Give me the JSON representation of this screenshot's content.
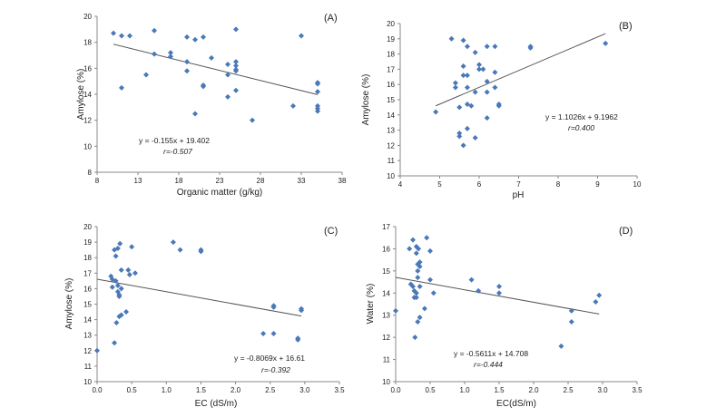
{
  "colors": {
    "marker": "#4a78b8",
    "trend": "#555555",
    "axis": "#888888"
  },
  "chart_data": [
    {
      "type": "scatter",
      "panel_label": "(A)",
      "xlabel": "Organic matter (g/kg)",
      "ylabel": "Amylose (%)",
      "xlim": [
        8,
        38
      ],
      "ylim": [
        8,
        20
      ],
      "xticks": [
        8,
        13,
        18,
        23,
        28,
        33,
        38
      ],
      "yticks": [
        8,
        10,
        12,
        14,
        16,
        18,
        20
      ],
      "equation": "y = -0.155x + 19.402",
      "r_text": "r=-0.507",
      "trend": {
        "slope": -0.155,
        "intercept": 19.402,
        "x_range": [
          10,
          35
        ]
      },
      "points": [
        [
          10,
          18.7
        ],
        [
          11,
          14.5
        ],
        [
          11,
          18.5
        ],
        [
          12,
          18.5
        ],
        [
          14,
          15.5
        ],
        [
          15,
          18.9
        ],
        [
          15,
          17.1
        ],
        [
          17,
          17.2
        ],
        [
          17,
          16.9
        ],
        [
          19,
          18.4
        ],
        [
          19,
          16.5
        ],
        [
          19,
          15.8
        ],
        [
          20,
          18.2
        ],
        [
          20,
          12.5
        ],
        [
          21,
          18.4
        ],
        [
          21,
          14.7
        ],
        [
          21,
          14.6
        ],
        [
          22,
          16.8
        ],
        [
          24,
          16.3
        ],
        [
          24,
          15.5
        ],
        [
          24,
          13.8
        ],
        [
          25,
          19.0
        ],
        [
          25,
          16.5
        ],
        [
          25,
          16.2
        ],
        [
          25,
          15.9
        ],
        [
          25,
          15.8
        ],
        [
          25,
          14.3
        ],
        [
          27,
          12.0
        ],
        [
          32,
          13.1
        ],
        [
          33,
          18.5
        ],
        [
          35,
          14.9
        ],
        [
          35,
          14.8
        ],
        [
          35,
          14.2
        ],
        [
          35,
          13.1
        ],
        [
          35,
          12.9
        ],
        [
          35,
          12.7
        ]
      ]
    },
    {
      "type": "scatter",
      "panel_label": "(B)",
      "xlabel": "pH",
      "ylabel": "Amylose (%)",
      "xlim": [
        4,
        10
      ],
      "ylim": [
        10,
        20
      ],
      "xticks": [
        4,
        5,
        6,
        7,
        8,
        9,
        10
      ],
      "yticks": [
        10,
        11,
        12,
        13,
        14,
        15,
        16,
        17,
        18,
        19,
        20
      ],
      "equation": "y = 1.1026x + 9.1962",
      "r_text": "r=0.400",
      "trend": {
        "slope": 1.1026,
        "intercept": 9.1962,
        "x_range": [
          4.9,
          9.2
        ]
      },
      "points": [
        [
          4.9,
          14.2
        ],
        [
          5.3,
          19.0
        ],
        [
          5.4,
          16.1
        ],
        [
          5.4,
          15.8
        ],
        [
          5.5,
          14.5
        ],
        [
          5.5,
          12.8
        ],
        [
          5.5,
          12.6
        ],
        [
          5.6,
          18.9
        ],
        [
          5.6,
          17.2
        ],
        [
          5.6,
          16.6
        ],
        [
          5.6,
          12.0
        ],
        [
          5.7,
          18.5
        ],
        [
          5.7,
          16.6
        ],
        [
          5.7,
          15.8
        ],
        [
          5.7,
          14.7
        ],
        [
          5.8,
          14.6
        ],
        [
          5.7,
          13.1
        ],
        [
          5.9,
          18.1
        ],
        [
          5.9,
          15.5
        ],
        [
          5.9,
          12.5
        ],
        [
          6.0,
          17.3
        ],
        [
          6.0,
          17.0
        ],
        [
          6.1,
          17.0
        ],
        [
          6.2,
          18.5
        ],
        [
          6.2,
          16.2
        ],
        [
          6.2,
          15.5
        ],
        [
          6.2,
          13.8
        ],
        [
          6.4,
          18.5
        ],
        [
          6.4,
          16.8
        ],
        [
          6.4,
          15.8
        ],
        [
          6.5,
          14.7
        ],
        [
          6.5,
          14.6
        ],
        [
          7.3,
          18.5
        ],
        [
          7.3,
          18.4
        ],
        [
          9.2,
          18.7
        ]
      ]
    },
    {
      "type": "scatter",
      "panel_label": "(C)",
      "xlabel": "EC (dS/m)",
      "ylabel": "Amylose (%)",
      "xlim": [
        0,
        3.5
      ],
      "ylim": [
        10,
        20
      ],
      "xticks": [
        "0.0",
        "0.5",
        "1.0",
        "1.5",
        "2.0",
        "2.5",
        "3.0",
        "3.5"
      ],
      "yticks": [
        10,
        11,
        12,
        13,
        14,
        15,
        16,
        17,
        18,
        19,
        20
      ],
      "equation": "y = -0.8069x + 16.61",
      "r_text": "r=-0.392",
      "trend": {
        "slope": -0.8069,
        "intercept": 16.61,
        "x_range": [
          0,
          2.95
        ]
      },
      "points": [
        [
          0.0,
          12.0
        ],
        [
          0.2,
          16.8
        ],
        [
          0.22,
          16.1
        ],
        [
          0.22,
          16.6
        ],
        [
          0.25,
          18.5
        ],
        [
          0.25,
          12.5
        ],
        [
          0.27,
          18.1
        ],
        [
          0.27,
          16.5
        ],
        [
          0.28,
          13.8
        ],
        [
          0.3,
          18.6
        ],
        [
          0.3,
          16.2
        ],
        [
          0.3,
          15.8
        ],
        [
          0.32,
          15.6
        ],
        [
          0.32,
          15.5
        ],
        [
          0.32,
          14.2
        ],
        [
          0.33,
          18.9
        ],
        [
          0.35,
          17.2
        ],
        [
          0.35,
          16.0
        ],
        [
          0.35,
          14.3
        ],
        [
          0.42,
          14.5
        ],
        [
          0.45,
          17.2
        ],
        [
          0.47,
          16.9
        ],
        [
          0.5,
          18.7
        ],
        [
          0.55,
          17.0
        ],
        [
          1.1,
          19.0
        ],
        [
          1.2,
          18.5
        ],
        [
          1.5,
          18.5
        ],
        [
          1.5,
          18.4
        ],
        [
          2.4,
          13.1
        ],
        [
          2.55,
          14.9
        ],
        [
          2.55,
          14.8
        ],
        [
          2.55,
          13.1
        ],
        [
          2.9,
          12.8
        ],
        [
          2.9,
          12.7
        ],
        [
          2.95,
          14.7
        ],
        [
          2.95,
          14.6
        ]
      ]
    },
    {
      "type": "scatter",
      "panel_label": "(D)",
      "xlabel": "EC(dS/m)",
      "ylabel": "Water (%)",
      "xlim": [
        0,
        3.5
      ],
      "ylim": [
        10,
        17
      ],
      "xticks": [
        "0.0",
        "0.5",
        "1.0",
        "1.5",
        "2.0",
        "2.5",
        "3.0",
        "3.5"
      ],
      "yticks": [
        10,
        11,
        12,
        13,
        14,
        15,
        16,
        17
      ],
      "equation": "y = -0.5611x + 14.708",
      "r_text": "r=-0.444",
      "trend": {
        "slope": -0.5611,
        "intercept": 14.708,
        "x_range": [
          0,
          2.95
        ]
      },
      "points": [
        [
          0.0,
          13.2
        ],
        [
          0.2,
          16.0
        ],
        [
          0.22,
          14.4
        ],
        [
          0.25,
          16.4
        ],
        [
          0.25,
          14.3
        ],
        [
          0.27,
          14.1
        ],
        [
          0.27,
          13.8
        ],
        [
          0.28,
          12.0
        ],
        [
          0.3,
          16.1
        ],
        [
          0.3,
          15.8
        ],
        [
          0.3,
          14.0
        ],
        [
          0.3,
          13.8
        ],
        [
          0.32,
          15.3
        ],
        [
          0.32,
          15.0
        ],
        [
          0.32,
          14.7
        ],
        [
          0.32,
          12.7
        ],
        [
          0.33,
          16.0
        ],
        [
          0.35,
          15.4
        ],
        [
          0.35,
          15.2
        ],
        [
          0.35,
          14.3
        ],
        [
          0.35,
          12.9
        ],
        [
          0.42,
          13.3
        ],
        [
          0.45,
          16.5
        ],
        [
          0.5,
          14.6
        ],
        [
          0.5,
          15.9
        ],
        [
          0.55,
          14.0
        ],
        [
          1.1,
          14.6
        ],
        [
          1.2,
          14.1
        ],
        [
          1.5,
          14.3
        ],
        [
          1.5,
          14.0
        ],
        [
          2.4,
          11.6
        ],
        [
          2.55,
          13.2
        ],
        [
          2.55,
          12.7
        ],
        [
          2.9,
          13.6
        ],
        [
          2.95,
          13.9
        ]
      ]
    }
  ]
}
